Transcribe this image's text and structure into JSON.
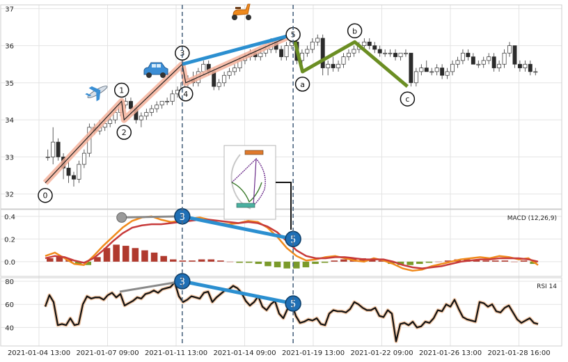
{
  "chart_data": {
    "type": "candlestick",
    "x_ticks": [
      "2021-01-04 13:00",
      "2021-01-07 09:00",
      "2021-01-11 13:00",
      "2021-01-14 09:00",
      "2021-01-19 13:00",
      "2021-01-22 09:00",
      "2021-01-26 13:00",
      "2021-01-28 16:00"
    ],
    "price_panel": {
      "ylim": [
        31.6,
        37.1
      ],
      "y_ticks": [
        32,
        33,
        34,
        35,
        36,
        37
      ],
      "candles_ohlc": [
        [
          33.0,
          33.2,
          32.9,
          33.0
        ],
        [
          33.0,
          33.8,
          32.8,
          33.4
        ],
        [
          33.4,
          33.5,
          32.9,
          33.0
        ],
        [
          33.0,
          33.1,
          32.4,
          32.7
        ],
        [
          32.7,
          32.9,
          32.3,
          32.5
        ],
        [
          32.5,
          32.6,
          32.2,
          32.4
        ],
        [
          32.4,
          32.9,
          32.3,
          32.8
        ],
        [
          32.8,
          33.2,
          32.7,
          33.1
        ],
        [
          33.1,
          33.9,
          33.0,
          33.8
        ],
        [
          33.8,
          33.9,
          33.6,
          33.7
        ],
        [
          33.7,
          34.0,
          33.6,
          33.8
        ],
        [
          33.8,
          34.0,
          33.7,
          33.9
        ],
        [
          33.9,
          34.1,
          33.8,
          34.0
        ],
        [
          34.0,
          34.3,
          33.9,
          34.2
        ],
        [
          34.2,
          34.5,
          34.1,
          34.4
        ],
        [
          34.4,
          34.6,
          34.3,
          34.5
        ],
        [
          34.5,
          34.6,
          34.2,
          34.3
        ],
        [
          34.3,
          34.4,
          33.9,
          34.0
        ],
        [
          34.0,
          34.2,
          33.8,
          34.1
        ],
        [
          34.1,
          34.3,
          34.0,
          34.2
        ],
        [
          34.2,
          34.4,
          34.1,
          34.3
        ],
        [
          34.3,
          34.5,
          34.2,
          34.4
        ],
        [
          34.4,
          34.5,
          34.3,
          34.5
        ],
        [
          34.5,
          34.6,
          34.4,
          34.5
        ],
        [
          34.5,
          34.8,
          34.4,
          34.7
        ],
        [
          34.7,
          34.9,
          34.6,
          34.8
        ],
        [
          34.8,
          35.1,
          34.7,
          35.0
        ],
        [
          35.0,
          35.2,
          34.9,
          35.1
        ],
        [
          35.1,
          35.3,
          34.9,
          35.0
        ],
        [
          35.0,
          35.4,
          34.9,
          35.3
        ],
        [
          35.3,
          35.6,
          35.2,
          35.5
        ],
        [
          35.5,
          35.6,
          35.2,
          35.3
        ],
        [
          35.3,
          35.4,
          34.8,
          34.9
        ],
        [
          34.9,
          35.1,
          34.8,
          35.0
        ],
        [
          35.0,
          35.3,
          34.9,
          35.2
        ],
        [
          35.2,
          35.4,
          35.1,
          35.3
        ],
        [
          35.3,
          35.5,
          35.2,
          35.4
        ],
        [
          35.4,
          35.7,
          35.3,
          35.6
        ],
        [
          35.6,
          35.8,
          35.5,
          35.7
        ],
        [
          35.7,
          35.9,
          35.6,
          35.8
        ],
        [
          35.8,
          35.9,
          35.6,
          35.7
        ],
        [
          35.7,
          35.9,
          35.6,
          35.8
        ],
        [
          35.8,
          36.0,
          35.7,
          35.9
        ],
        [
          35.9,
          36.2,
          35.8,
          36.1
        ],
        [
          36.1,
          36.2,
          35.8,
          35.9
        ],
        [
          35.9,
          36.0,
          35.6,
          35.7
        ],
        [
          35.7,
          36.1,
          35.6,
          36.0
        ],
        [
          36.0,
          36.2,
          35.9,
          36.1
        ],
        [
          36.1,
          36.3,
          35.5,
          35.6
        ],
        [
          35.6,
          35.9,
          35.5,
          35.8
        ],
        [
          35.8,
          36.0,
          35.7,
          35.9
        ],
        [
          35.9,
          36.2,
          35.8,
          36.1
        ],
        [
          36.1,
          36.3,
          36.0,
          36.2
        ],
        [
          36.2,
          36.3,
          35.2,
          35.4
        ],
        [
          35.4,
          35.6,
          35.2,
          35.5
        ],
        [
          35.5,
          35.7,
          35.3,
          35.4
        ],
        [
          35.4,
          35.6,
          35.3,
          35.5
        ],
        [
          35.5,
          35.8,
          35.4,
          35.7
        ],
        [
          35.7,
          35.9,
          35.6,
          35.8
        ],
        [
          35.8,
          36.0,
          35.7,
          35.9
        ],
        [
          35.9,
          36.1,
          35.8,
          36.0
        ],
        [
          36.0,
          36.2,
          35.9,
          36.1
        ],
        [
          36.1,
          36.2,
          35.9,
          36.0
        ],
        [
          36.0,
          36.1,
          35.8,
          35.9
        ],
        [
          35.9,
          36.0,
          35.7,
          35.8
        ],
        [
          35.8,
          35.9,
          35.7,
          35.8
        ],
        [
          35.8,
          35.9,
          35.7,
          35.8
        ],
        [
          35.8,
          35.9,
          35.6,
          35.7
        ],
        [
          35.7,
          35.8,
          35.6,
          35.8
        ],
        [
          35.8,
          35.9,
          35.7,
          35.8
        ],
        [
          35.8,
          35.8,
          34.9,
          35.0
        ],
        [
          35.0,
          35.4,
          34.9,
          35.3
        ],
        [
          35.3,
          35.5,
          35.2,
          35.4
        ],
        [
          35.4,
          35.6,
          35.3,
          35.3
        ],
        [
          35.3,
          35.4,
          35.2,
          35.3
        ],
        [
          35.3,
          35.5,
          35.2,
          35.4
        ],
        [
          35.4,
          35.5,
          35.1,
          35.2
        ],
        [
          35.2,
          35.4,
          35.1,
          35.3
        ],
        [
          35.3,
          35.6,
          35.2,
          35.5
        ],
        [
          35.5,
          35.7,
          35.4,
          35.6
        ],
        [
          35.6,
          35.9,
          35.5,
          35.8
        ],
        [
          35.8,
          35.9,
          35.6,
          35.7
        ],
        [
          35.7,
          35.8,
          35.5,
          35.5
        ],
        [
          35.5,
          35.6,
          35.4,
          35.5
        ],
        [
          35.5,
          35.7,
          35.4,
          35.6
        ],
        [
          35.6,
          35.8,
          35.5,
          35.7
        ],
        [
          35.7,
          35.8,
          35.3,
          35.4
        ],
        [
          35.4,
          35.6,
          35.3,
          35.5
        ],
        [
          35.5,
          35.9,
          35.4,
          35.8
        ],
        [
          35.8,
          36.1,
          35.7,
          36.0
        ],
        [
          36.0,
          36.0,
          35.4,
          35.5
        ],
        [
          35.5,
          35.6,
          35.3,
          35.4
        ],
        [
          35.4,
          35.6,
          35.3,
          35.5
        ],
        [
          35.5,
          35.6,
          35.2,
          35.3
        ],
        [
          35.3,
          35.4,
          35.2,
          35.3
        ]
      ],
      "primary_wave": [
        {
          "label": "0",
          "x": 0.0,
          "y": 32.3
        },
        {
          "label": "1",
          "x": 0.155,
          "y": 34.5
        },
        {
          "label": "2",
          "x": 0.16,
          "y": 34.0
        },
        {
          "label": "3",
          "x": 0.278,
          "y": 35.5
        },
        {
          "label": "4",
          "x": 0.285,
          "y": 35.0
        },
        {
          "label": "5",
          "x": 0.503,
          "y": 36.3
        }
      ],
      "correction_wave": [
        {
          "label": "5",
          "x": 0.503,
          "y": 36.3
        },
        {
          "label": "a",
          "x": 0.522,
          "y": 35.3
        },
        {
          "label": "b",
          "x": 0.628,
          "y": 36.1
        },
        {
          "label": "c",
          "x": 0.735,
          "y": 34.9
        }
      ],
      "trend_line_3_5": [
        {
          "x": 0.278,
          "y": 35.5
        },
        {
          "x": 0.503,
          "y": 36.3
        }
      ]
    },
    "macd_panel": {
      "label": "MACD (12,26,9)",
      "ylim": [
        -0.13,
        0.46
      ],
      "y_ticks": [
        0.0,
        0.2,
        0.4
      ],
      "macd": [
        0.05,
        0.08,
        0.03,
        -0.02,
        -0.03,
        0.05,
        0.14,
        0.22,
        0.3,
        0.36,
        0.39,
        0.4,
        0.37,
        0.35,
        0.36,
        0.38,
        0.39,
        0.37,
        0.34,
        0.33,
        0.34,
        0.36,
        0.35,
        0.3,
        0.22,
        0.12,
        0.05,
        0.01,
        0.02,
        0.04,
        0.05,
        0.03,
        0.01,
        0.0,
        0.03,
        0.01,
        -0.02,
        -0.06,
        -0.08,
        -0.07,
        -0.04,
        -0.02,
        0.0,
        0.02,
        0.03,
        0.04,
        0.03,
        0.05,
        0.04,
        0.02,
        0.03,
        -0.03
      ],
      "signal": [
        0.03,
        0.05,
        0.04,
        0.01,
        -0.01,
        0.03,
        0.1,
        0.18,
        0.25,
        0.3,
        0.32,
        0.33,
        0.33,
        0.34,
        0.35,
        0.36,
        0.37,
        0.37,
        0.36,
        0.35,
        0.34,
        0.35,
        0.34,
        0.31,
        0.26,
        0.18,
        0.1,
        0.05,
        0.03,
        0.03,
        0.04,
        0.04,
        0.03,
        0.02,
        0.02,
        0.02,
        0.0,
        -0.03,
        -0.05,
        -0.06,
        -0.05,
        -0.04,
        -0.02,
        0.0,
        0.01,
        0.02,
        0.02,
        0.03,
        0.03,
        0.03,
        0.02,
        0.0
      ],
      "histogram": [
        0.03,
        0.05,
        0.02,
        -0.02,
        -0.03,
        0.04,
        0.12,
        0.15,
        0.14,
        0.12,
        0.1,
        0.08,
        0.05,
        0.02,
        0.01,
        0.01,
        0.02,
        0.02,
        0.01,
        0.0,
        -0.01,
        -0.01,
        -0.02,
        -0.04,
        -0.05,
        -0.06,
        -0.06,
        -0.05,
        -0.02,
        -0.01,
        0.01,
        0.02,
        0.03,
        0.03,
        0.02,
        0.01,
        -0.02,
        -0.03,
        -0.03,
        -0.02,
        -0.01,
        0.0,
        0.01,
        0.02,
        0.02,
        0.02,
        0.01,
        0.01,
        0.01,
        0.0,
        0.01,
        -0.02
      ],
      "divergence_line": {
        "start": {
          "x": 0.155,
          "y": 0.39
        },
        "p3": {
          "x": 0.278,
          "y": 0.4
        },
        "p5": {
          "x": 0.503,
          "y": 0.2
        }
      }
    },
    "rsi_panel": {
      "label": "RSI 14",
      "ylim": [
        24,
        83
      ],
      "y_ticks": [
        40,
        60,
        80
      ],
      "values": [
        58,
        68,
        62,
        42,
        43,
        42,
        48,
        42,
        43,
        60,
        67,
        65,
        66,
        66,
        64,
        68,
        70,
        66,
        69,
        59,
        61,
        63,
        66,
        65,
        69,
        70,
        72,
        70,
        73,
        74,
        75,
        79,
        67,
        62,
        64,
        67,
        66,
        65,
        70,
        71,
        62,
        66,
        69,
        72,
        73,
        76,
        74,
        70,
        63,
        59,
        62,
        67,
        58,
        55,
        60,
        63,
        52,
        48,
        56,
        61,
        50,
        44,
        45,
        47,
        46,
        48,
        43,
        42,
        52,
        55,
        54,
        54,
        53,
        56,
        62,
        60,
        57,
        55,
        55,
        57,
        50,
        49,
        55,
        52,
        28,
        43,
        44,
        42,
        45,
        40,
        41,
        45,
        44,
        48,
        55,
        54,
        60,
        58,
        64,
        56,
        49,
        47,
        46,
        45,
        62,
        61,
        58,
        60,
        54,
        53,
        57,
        59,
        53,
        47,
        44,
        46,
        48,
        44,
        43
      ]
    },
    "markers": {
      "circled_3": "3",
      "circled_5": "5"
    }
  }
}
